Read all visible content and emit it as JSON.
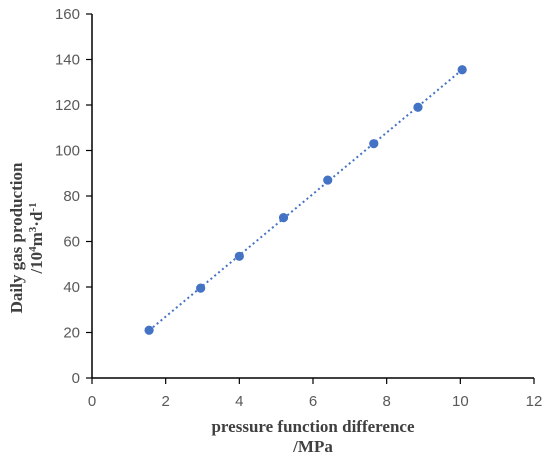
{
  "chart_data": {
    "type": "scatter",
    "xlabel": {
      "line1": "pressure function difference",
      "line2": "/MPa"
    },
    "ylabel": {
      "line1": "Daily gas production",
      "prefix": "/10",
      "sup1": "4",
      "mid": "m",
      "sup2": "3",
      "mid2": "·d",
      "sup3": "-1"
    },
    "xlim": [
      0,
      12
    ],
    "ylim": [
      0,
      160
    ],
    "x_ticks": [
      0,
      2,
      4,
      6,
      8,
      10,
      12
    ],
    "y_ticks": [
      0,
      20,
      40,
      60,
      80,
      100,
      120,
      140,
      160
    ],
    "grid": false,
    "series": [
      {
        "x": [
          1.55,
          2.95,
          4.0,
          5.2,
          6.4,
          7.65,
          8.85,
          10.05
        ],
        "y": [
          21,
          39.5,
          53.5,
          70.5,
          87,
          103,
          119,
          135.5
        ]
      }
    ],
    "trendline": {
      "style": "dotted",
      "kind": "linear"
    },
    "colors": {
      "marker": "#4472C4",
      "trend": "#4472C4",
      "axis": "#000000",
      "tick_text": "#595959"
    }
  }
}
